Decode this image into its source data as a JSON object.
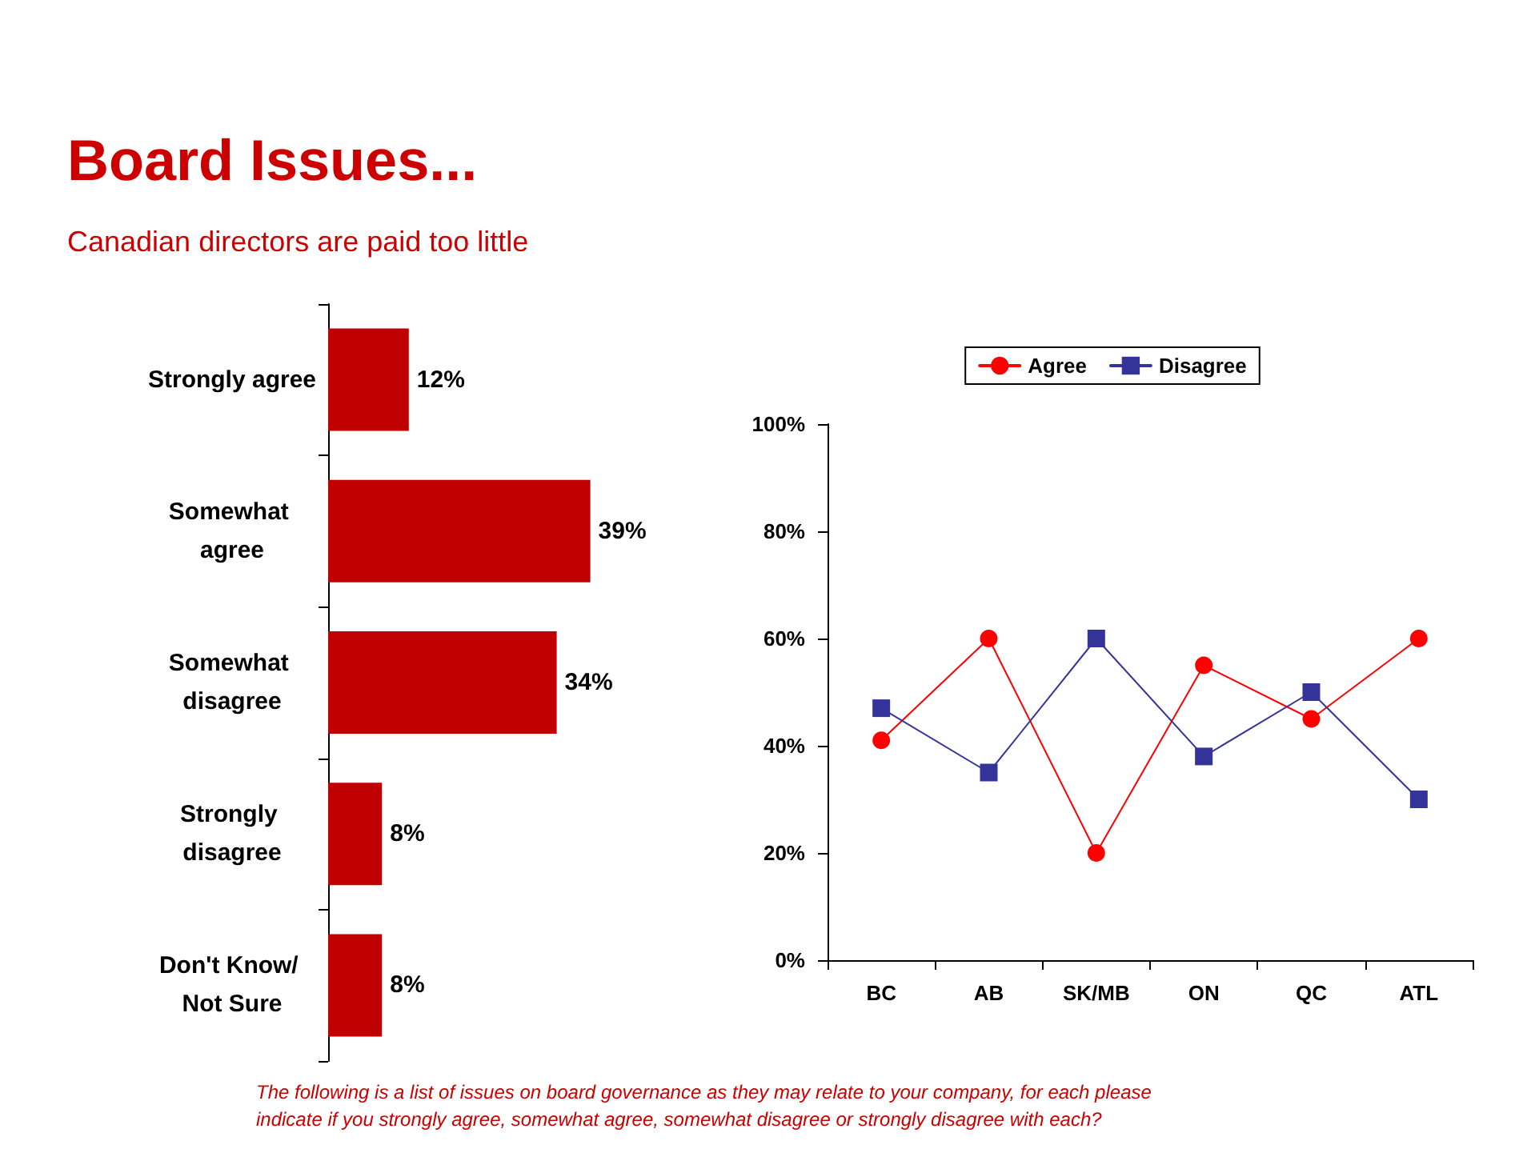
{
  "chart_data": [
    {
      "type": "bar",
      "orientation": "horizontal",
      "title": "Board Issues...",
      "subtitle": "Canadian directors are paid too little",
      "categories": [
        "Strongly agree",
        "Somewhat agree",
        "Somewhat disagree",
        "Strongly disagree",
        "Don't Know/ Not Sure"
      ],
      "values": [
        12,
        39,
        34,
        8,
        8
      ],
      "value_labels": [
        "12%",
        "39%",
        "34%",
        "8%",
        "8%"
      ],
      "color": "#c00000",
      "grid": false,
      "legend": false,
      "annotations": [
        "The following is a list of issues on board governance as they may relate to your company, for each please indicate if you strongly agree, somewhat agree, somewhat disagree or strongly disagree with each?"
      ]
    },
    {
      "type": "line",
      "categories": [
        "BC",
        "AB",
        "SK/MB",
        "ON",
        "QC",
        "ATL"
      ],
      "series": [
        {
          "name": "Agree",
          "color": "#ff0000",
          "marker": "circle",
          "values": [
            41,
            60,
            20,
            55,
            45,
            60
          ]
        },
        {
          "name": "Disagree",
          "color": "#333399",
          "marker": "square",
          "values": [
            47,
            35,
            60,
            38,
            50,
            30
          ]
        }
      ],
      "ylim": [
        0,
        100
      ],
      "yticks": [
        {
          "value": 0,
          "label": "0%"
        },
        {
          "value": 20,
          "label": "20%"
        },
        {
          "value": 40,
          "label": "40%"
        },
        {
          "value": 60,
          "label": "60%"
        },
        {
          "value": 80,
          "label": "80%"
        },
        {
          "value": 100,
          "label": "100%"
        }
      ],
      "grid": false,
      "legend": "top",
      "line_style": "solid"
    }
  ]
}
